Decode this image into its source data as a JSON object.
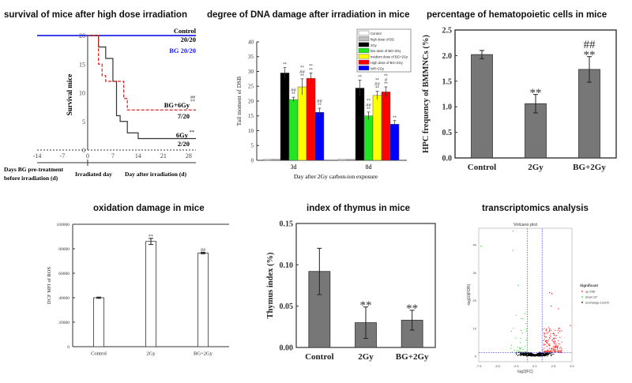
{
  "titles": {
    "survival": "survival of mice after high dose irradiation",
    "dna": "degree of DNA damage after irradiation in mice",
    "hpc": "percentage of hematopoietic cells in mice",
    "oxidation": "oxidation damage in mice",
    "thymus": "index of thymus in mice",
    "transcriptomics": "transcriptomics analysis"
  },
  "chart_data": [
    {
      "id": "survival",
      "type": "line",
      "step": true,
      "ylabel": "Survival mice",
      "xlim": [
        -14,
        30
      ],
      "ylim": [
        0,
        20
      ],
      "xticks": [
        -14,
        -7,
        0,
        7,
        14,
        21,
        28
      ],
      "yticks": [
        0,
        5,
        10,
        15,
        20
      ],
      "xlabels": [
        "Days BG pre-treatment",
        "before irradiation (d)",
        "Irradiated day",
        "Day after irradiation (d)"
      ],
      "series": [
        {
          "name": "Control",
          "label": "Control",
          "count": "20/20",
          "color": "#555555",
          "x": [
            -14,
            30
          ],
          "y": [
            20,
            20
          ]
        },
        {
          "name": "BG",
          "label": "BG 20/20",
          "color": "#1a1aff",
          "x": [
            -14,
            30
          ],
          "y": [
            20,
            20
          ]
        },
        {
          "name": "6Gy",
          "label": "6Gy",
          "sig": "**",
          "count": "2/20",
          "color": "#333333",
          "x": [
            0,
            3,
            5,
            7,
            8,
            9,
            11,
            14,
            30
          ],
          "y": [
            20,
            18,
            16,
            12,
            6,
            5,
            3,
            2,
            2
          ]
        },
        {
          "name": "BG+6Gy",
          "label": "BG+6Gy",
          "sig": "##\n**",
          "count": "7/20",
          "color": "#e02020",
          "x": [
            0,
            3,
            4,
            5,
            10,
            11,
            30
          ],
          "y": [
            20,
            15,
            13,
            12,
            9,
            7,
            7
          ]
        }
      ]
    },
    {
      "id": "dna",
      "type": "bar",
      "ylabel": "Tail moment of DSB",
      "xlabel": "Day after 2Gy carbon-ion exposure",
      "ylim": [
        0,
        40
      ],
      "yticks": [
        0,
        5,
        10,
        15,
        20,
        25,
        30,
        35,
        40
      ],
      "categories": [
        "3d",
        "8d"
      ],
      "legend_position": "top-right",
      "series": [
        {
          "name": "Control",
          "color": "#ffffff",
          "values": [
            0.3,
            0.3
          ],
          "errors": [
            0,
            0
          ],
          "sig": [
            "",
            ""
          ]
        },
        {
          "name": "high dose of BG",
          "color": "#c0c0c0",
          "values": [
            0.3,
            0.3
          ],
          "errors": [
            0,
            0
          ],
          "sig": [
            "",
            ""
          ]
        },
        {
          "name": "2Gy",
          "color": "#000000",
          "values": [
            29.5,
            24.4
          ],
          "errors": [
            1.8,
            2.7
          ],
          "sig": [
            "**",
            "**"
          ]
        },
        {
          "name": "low dose of BG+2Gy",
          "color": "#22e622",
          "values": [
            20.5,
            15.0
          ],
          "errors": [
            0.8,
            1.3
          ],
          "sig": [
            "##\n**",
            "**\n##\n**"
          ]
        },
        {
          "name": "medium dose of BG+2Gy",
          "color": "#ffff00",
          "values": [
            24.8,
            21.9
          ],
          "errors": [
            2.7,
            1.4
          ],
          "sig": [
            "**\n##\n**",
            "**\n##\n**"
          ]
        },
        {
          "name": "High dose of BG+2Gy",
          "color": "#ff0000",
          "values": [
            27.7,
            23.1
          ],
          "errors": [
            1.8,
            1.7
          ],
          "sig": [
            "**\n**",
            "**\n#\n**"
          ]
        },
        {
          "name": "WR+2Gy",
          "color": "#0000ff",
          "values": [
            16.2,
            12.2
          ],
          "errors": [
            1.4,
            1.2
          ],
          "sig": [
            "##\n**",
            "**"
          ]
        }
      ]
    },
    {
      "id": "hpc",
      "type": "bar",
      "ylabel": "HPC frequency of BMMNCs (%)",
      "ylim": [
        0,
        2.5
      ],
      "yticks": [
        "0.0",
        "0.5",
        "1.0",
        "1.5",
        "2.0",
        "2.5"
      ],
      "categories": [
        "Control",
        "2Gy",
        "BG+2Gy"
      ],
      "values": [
        2.02,
        1.06,
        1.73
      ],
      "errors": [
        0.08,
        0.18,
        0.25
      ],
      "sig": [
        "",
        "**",
        "##\n**"
      ],
      "color": "#777777"
    },
    {
      "id": "oxidation",
      "type": "bar",
      "ylabel": "DCF MFI of ROS",
      "ylim": [
        0,
        100000
      ],
      "yticks": [
        "0",
        "20000",
        "40000",
        "60000",
        "80000",
        "100000"
      ],
      "categories": [
        "Control",
        "2Gy",
        "BG+2Gy"
      ],
      "values": [
        40000,
        86000,
        76500
      ],
      "errors": [
        500,
        2500,
        600
      ],
      "sig": [
        "",
        "**",
        "##"
      ],
      "color": "#ffffff"
    },
    {
      "id": "thymus",
      "type": "bar",
      "ylabel": "Thymus index (%)",
      "ylim": [
        0,
        0.15
      ],
      "yticks": [
        "0.00",
        "0.05",
        "0.10",
        "0.15"
      ],
      "categories": [
        "Control",
        "2Gy",
        "BG+2Gy"
      ],
      "values": [
        0.092,
        0.03,
        0.033
      ],
      "errors": [
        0.028,
        0.019,
        0.012
      ],
      "sig": [
        "",
        "**",
        "**"
      ],
      "color": "#777777"
    },
    {
      "id": "volcano",
      "type": "scatter",
      "title": "Volcano plot",
      "xlabel": "log2(FC)",
      "ylabel": "-log10(FDR)",
      "xlim": [
        -7.5,
        5
      ],
      "ylim": [
        -2,
        46
      ],
      "xticks": [
        "-7.5",
        "-5.0",
        "-2.5",
        "0.0",
        "2.5",
        "5.0"
      ],
      "yticks": [
        "0",
        "10",
        "20",
        "30",
        "40"
      ],
      "thresholds": {
        "log2fc": [
          -1,
          1
        ],
        "neg_log10_fdr": 1.3
      },
      "legend_title": "Significant",
      "legend_position": "right",
      "groups": [
        {
          "label": "up:256",
          "color": "#ff2020",
          "count": 256
        },
        {
          "label": "down:37",
          "color": "#22dd22",
          "count": 37
        },
        {
          "label": "unchange:13100",
          "color": "#000000",
          "count": 13100
        }
      ],
      "outliers": [
        {
          "x": -7.2,
          "y": 39.5,
          "group": "down"
        },
        {
          "x": -2.9,
          "y": 45,
          "group": "down"
        },
        {
          "x": -2.9,
          "y": 38,
          "group": "down"
        },
        {
          "x": -2.2,
          "y": 25.5,
          "group": "down"
        },
        {
          "x": 2.0,
          "y": 22.8,
          "group": "up"
        },
        {
          "x": 2.3,
          "y": 22.5,
          "group": "up"
        },
        {
          "x": 2.2,
          "y": 18,
          "group": "up"
        },
        {
          "x": 3.2,
          "y": 17,
          "group": "up"
        },
        {
          "x": 4.8,
          "y": 11,
          "group": "up"
        }
      ]
    }
  ]
}
